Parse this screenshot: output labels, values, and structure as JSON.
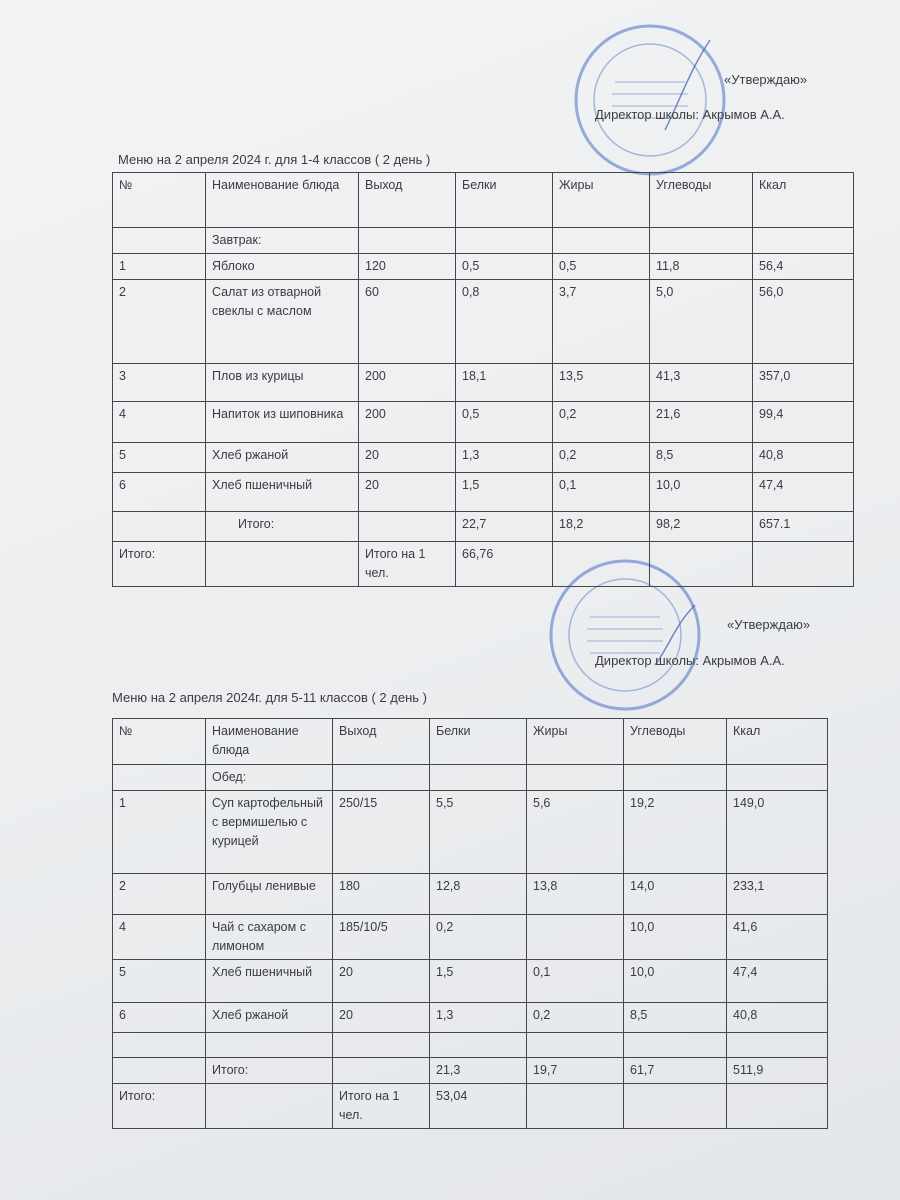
{
  "approval_1": {
    "approve": "«Утверждаю»",
    "director": "Директор школы: Акрымов А.А."
  },
  "approval_2": {
    "approve": "«Утверждаю»",
    "director": "Директор школы: Акрымов А.А."
  },
  "stamp_color": "#4a6fc4",
  "menu_1": {
    "title": "Меню   на   2 апреля   2024 г. для 1-4 классов ( 2 день )",
    "header": [
      "№",
      "Наименование блюда",
      "Выход",
      "Белки",
      "Жиры",
      "Углеводы",
      "Ккал"
    ],
    "rows": [
      [
        "",
        "Завтрак:",
        "",
        "",
        "",
        "",
        ""
      ],
      [
        "1",
        "Яблоко",
        "120",
        "0,5",
        "0,5",
        "11,8",
        "56,4"
      ],
      [
        "2",
        "Салат из отварной свеклы с маслом",
        "60",
        "0,8",
        "3,7",
        "5,0",
        "56,0"
      ],
      [
        "3",
        "Плов из курицы",
        "200",
        "18,1",
        "13,5",
        "41,3",
        "357,0"
      ],
      [
        "4",
        "Напиток из шиповника",
        "200",
        "0,5",
        "0,2",
        "21,6",
        "99,4"
      ],
      [
        "5",
        "Хлеб ржаной",
        "20",
        "1,3",
        "0,2",
        "8,5",
        "40,8"
      ],
      [
        "6",
        "Хлеб пшеничный",
        "20",
        "1,5",
        "0,1",
        "10,0",
        "47,4"
      ],
      [
        "",
        "Итого:",
        "",
        "22,7",
        "18,2",
        "98,2",
        "657.1"
      ],
      [
        "Итого:",
        "",
        "Итого на 1 чел.",
        "66,76",
        "",
        "",
        ""
      ]
    ]
  },
  "menu_2": {
    "title": "Меню   на   2  апреля   2024г. для 5-11 классов ( 2 день )",
    "header": [
      "№",
      "Наименование блюда",
      "Выход",
      "Белки",
      "Жиры",
      "Углеводы",
      "Ккал"
    ],
    "rows": [
      [
        "",
        "Обед:",
        "",
        "",
        "",
        "",
        ""
      ],
      [
        "1",
        "Суп картофельный с вермишелью с курицей",
        "250/15",
        "5,5",
        "5,6",
        "19,2",
        "149,0"
      ],
      [
        "2",
        "Голубцы ленивые",
        "180",
        "12,8",
        "13,8",
        "14,0",
        "233,1"
      ],
      [
        "4",
        "Чай с сахаром с лимоном",
        "185/10/5",
        "0,2",
        "",
        "10,0",
        "41,6"
      ],
      [
        "5",
        "Хлеб пшеничный",
        "20",
        "1,5",
        "0,1",
        "10,0",
        "47,4"
      ],
      [
        "6",
        "Хлеб  ржаной",
        "20",
        "1,3",
        "0,2",
        "8,5",
        "40,8"
      ],
      [
        "",
        "",
        "",
        "",
        "",
        "",
        ""
      ],
      [
        "",
        "Итого:",
        "",
        "21,3",
        "19,7",
        "61,7",
        "511,9"
      ],
      [
        "Итого:",
        "",
        "Итого на 1 чел.",
        "53,04",
        "",
        "",
        ""
      ]
    ]
  }
}
